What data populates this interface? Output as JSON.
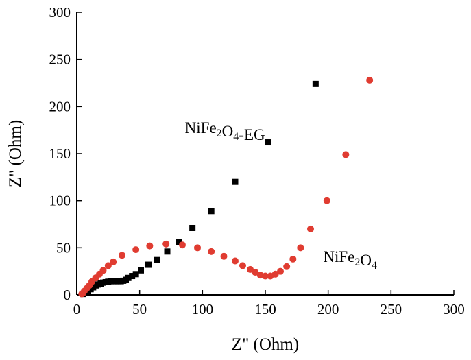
{
  "chart_data": {
    "type": "scatter",
    "xlabel": "Z\" (Ohm)",
    "ylabel": "Z\" (Ohm)",
    "xlim": [
      0,
      300
    ],
    "ylim": [
      0,
      300
    ],
    "x_ticks": [
      0,
      50,
      100,
      150,
      200,
      250,
      300
    ],
    "y_ticks": [
      0,
      50,
      100,
      150,
      200,
      250,
      300
    ],
    "grid": false,
    "series": [
      {
        "name": "NiFe2O4-EG",
        "marker": "square",
        "color": "#000000",
        "points": [
          [
            5,
            1
          ],
          [
            7,
            2
          ],
          [
            9,
            4
          ],
          [
            11,
            6
          ],
          [
            13,
            8
          ],
          [
            15,
            10
          ],
          [
            17,
            11
          ],
          [
            19,
            12
          ],
          [
            21,
            13
          ],
          [
            23,
            13.5
          ],
          [
            25,
            14
          ],
          [
            27,
            14.5
          ],
          [
            29,
            14.5
          ],
          [
            31,
            14.5
          ],
          [
            33,
            14.5
          ],
          [
            35,
            14.5
          ],
          [
            37,
            15
          ],
          [
            39,
            16
          ],
          [
            41,
            18
          ],
          [
            44,
            20
          ],
          [
            47,
            22
          ],
          [
            51,
            26
          ],
          [
            57,
            32
          ],
          [
            64,
            37
          ],
          [
            72,
            46
          ],
          [
            81,
            56
          ],
          [
            92,
            71
          ],
          [
            107,
            89
          ],
          [
            126,
            120
          ],
          [
            152,
            162
          ],
          [
            190,
            224
          ]
        ]
      },
      {
        "name": "NiFe2O4",
        "marker": "circle",
        "color": "#e03c31",
        "points": [
          [
            4,
            1
          ],
          [
            5,
            2
          ],
          [
            6,
            4
          ],
          [
            8,
            7
          ],
          [
            10,
            10
          ],
          [
            12,
            14
          ],
          [
            15,
            18
          ],
          [
            18,
            22
          ],
          [
            21,
            26
          ],
          [
            25,
            31
          ],
          [
            29,
            35
          ],
          [
            36,
            42
          ],
          [
            47,
            48
          ],
          [
            58,
            52
          ],
          [
            71,
            54
          ],
          [
            84,
            53
          ],
          [
            96,
            50
          ],
          [
            107,
            46
          ],
          [
            117,
            41
          ],
          [
            126,
            36
          ],
          [
            132,
            31
          ],
          [
            138,
            27
          ],
          [
            142,
            24
          ],
          [
            146,
            21
          ],
          [
            150,
            20
          ],
          [
            154,
            20
          ],
          [
            158,
            22
          ],
          [
            162,
            25
          ],
          [
            167,
            30
          ],
          [
            172,
            38
          ],
          [
            178,
            50
          ],
          [
            186,
            70
          ],
          [
            199,
            100
          ],
          [
            214,
            149
          ],
          [
            233,
            228
          ]
        ]
      }
    ],
    "annotations": [
      {
        "text": "NiFe2O4-EG",
        "series": "NiFe2O4-EG",
        "anchor_x": 86,
        "anchor_y": 172
      },
      {
        "text": "NiFe2O4",
        "series": "NiFe2O4",
        "anchor_x": 196,
        "anchor_y": 35
      }
    ]
  }
}
